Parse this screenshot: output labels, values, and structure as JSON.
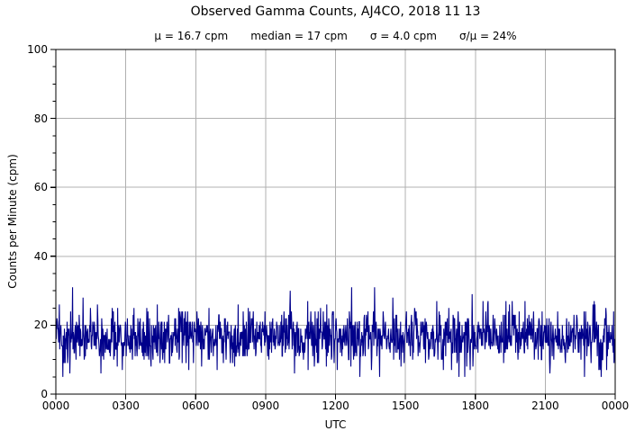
{
  "figure": {
    "title": "Observed Gamma Counts, AJ4CO, 2018 11 13",
    "stats": {
      "mu": "μ = 16.7 cpm",
      "median": "median = 17 cpm",
      "sigma": "σ = 4.0 cpm",
      "ratio": "σ/μ = 24%"
    },
    "xlabel": "UTC",
    "ylabel": "Counts per Minute (cpm)"
  },
  "chart_data": {
    "type": "line",
    "title": "Observed Gamma Counts, AJ4CO, 2018 11 13",
    "subtitle_stats": {
      "mean_cpm": 16.7,
      "median_cpm": 17,
      "sigma_cpm": 4.0,
      "sigma_over_mean_pct": 24
    },
    "xlabel": "UTC",
    "ylabel": "Counts per Minute (cpm)",
    "xlim_hours": [
      0,
      24
    ],
    "ylim": [
      0,
      100
    ],
    "x_tick_hours": [
      0,
      3,
      6,
      9,
      12,
      15,
      18,
      21,
      24
    ],
    "x_tick_labels": [
      "0000",
      "0300",
      "0600",
      "0900",
      "1200",
      "1500",
      "1800",
      "2100",
      "0000"
    ],
    "y_ticks": [
      0,
      20,
      40,
      60,
      80,
      100
    ],
    "y_minor_step": 5,
    "grid": true,
    "legend": false,
    "series": [
      {
        "name": "observed gamma counts",
        "color": "#00008B",
        "n_points": 1440,
        "points_per_hour": 60,
        "mean": 16.7,
        "median": 17,
        "sigma": 4.0,
        "observed_min": 5,
        "observed_max": 31,
        "distribution": "integer counts per minute, random noise about the mean",
        "seed": 20181113
      }
    ],
    "notable_points": [
      {
        "hour": 0.3,
        "value": 5
      },
      {
        "hour": 0.72,
        "value": 31
      },
      {
        "hour": 5.7,
        "value": 7
      },
      {
        "hour": 10.05,
        "value": 30
      },
      {
        "hour": 12.68,
        "value": 31
      },
      {
        "hour": 17.85,
        "value": 29
      },
      {
        "hour": 24.0,
        "value": 9
      }
    ]
  },
  "colors": {
    "trace": "#00008B",
    "grid": "#b0b0b0",
    "axis": "#000000",
    "background": "#ffffff"
  }
}
